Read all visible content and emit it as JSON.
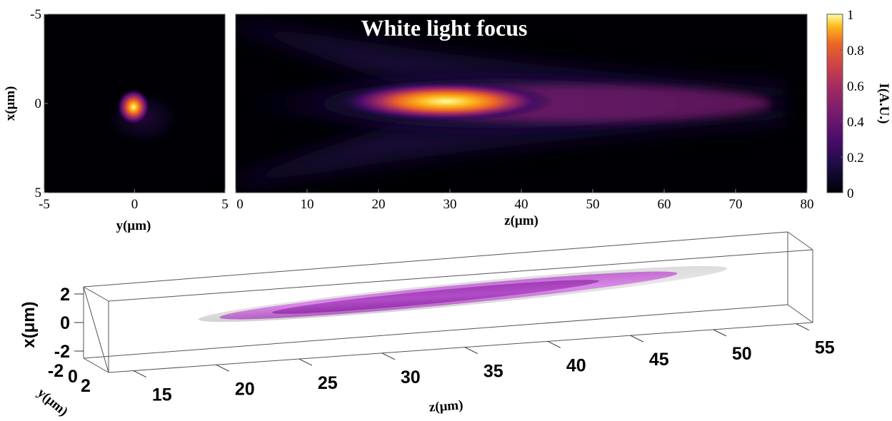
{
  "figure": {
    "title": "White light focus"
  },
  "chart_data": [
    {
      "type": "heatmap",
      "panel": "transverse",
      "xlabel": "y(μm)",
      "ylabel": "x(μm)",
      "xlim": [
        -5,
        5
      ],
      "ylim": [
        -5,
        5
      ],
      "y_inverted": true,
      "xticks": [
        -5,
        0,
        5
      ],
      "yticks": [
        -5,
        0,
        5
      ],
      "xtick_labels": [
        "-5",
        "0",
        "5"
      ],
      "ytick_labels": [
        "-5",
        "0",
        "5"
      ],
      "peak": {
        "y": 0,
        "x": 0,
        "intensity": 1.0
      }
    },
    {
      "type": "heatmap",
      "panel": "longitudinal",
      "title": "White light focus",
      "xlabel": "z(μm)",
      "xlim": [
        0,
        80
      ],
      "xticks": [
        0,
        10,
        20,
        30,
        40,
        50,
        60,
        70,
        80
      ],
      "xtick_labels": [
        "0",
        "10",
        "20",
        "30",
        "40",
        "50",
        "60",
        "70",
        "80"
      ],
      "peak": {
        "z": 28,
        "x": 0,
        "intensity": 1.0
      },
      "colorbar": {
        "label": "I(A.U.)",
        "range": [
          0,
          1
        ],
        "ticks": [
          0,
          0.2,
          0.4,
          0.6,
          0.8,
          1
        ],
        "tick_labels": [
          "0",
          "0.2",
          "0.4",
          "0.6",
          "0.8",
          "1"
        ],
        "colormap": "inferno"
      }
    },
    {
      "type": "isosurface-3d",
      "panel": "3d",
      "xlabel": "z(μm)",
      "ylabel": "x(μm)",
      "zlabel": "y(μm)",
      "z_ticks": [
        15,
        20,
        25,
        30,
        35,
        40,
        45,
        50,
        55
      ],
      "z_tick_labels": [
        "15",
        "20",
        "25",
        "30",
        "35",
        "40",
        "45",
        "50",
        "55"
      ],
      "x_ticks": [
        2,
        0,
        -2
      ],
      "x_tick_labels": [
        "2",
        "0",
        "-2"
      ],
      "y_tick_labels": [
        "-2",
        "0",
        "2"
      ],
      "surfaces": [
        {
          "name": "outer",
          "color": "#cfcfcf"
        },
        {
          "name": "middle",
          "color": "#c77bd6"
        },
        {
          "name": "inner",
          "color": "#a13ab5"
        }
      ]
    }
  ]
}
